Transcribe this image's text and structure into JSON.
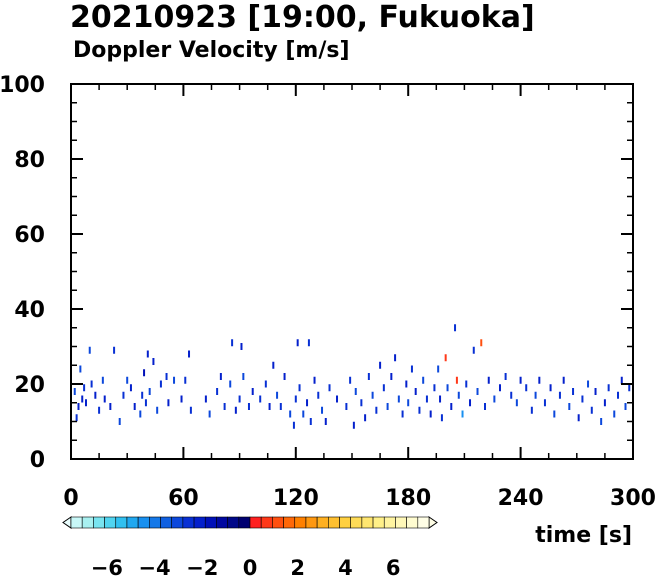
{
  "chart_data": {
    "type": "heatmap",
    "title": "20210923 [19:00, Fukuoka]",
    "subtitle": "Doppler Velocity [m/s]",
    "xlabel": "time [s]",
    "ylabel": "",
    "xlim": [
      0,
      300
    ],
    "ylim": [
      0,
      100
    ],
    "x_ticks": [
      "0",
      "60",
      "120",
      "180",
      "240",
      "300"
    ],
    "y_ticks": [
      "0",
      "20",
      "40",
      "60",
      "80",
      "100"
    ],
    "colorbar": {
      "vmin": -7.5,
      "vmax": 7.5,
      "ticks": [
        "−6",
        "−4",
        "−2",
        "0",
        "2",
        "4",
        "6"
      ],
      "negative_colors": [
        "#c8f8f8",
        "#a8f0f0",
        "#78e4f0",
        "#50d4f0",
        "#30c0f0",
        "#20a8f0",
        "#1890f0",
        "#1478e8",
        "#1060e0",
        "#0c48dc",
        "#0830d4",
        "#0420cc",
        "#0010b8",
        "#0008a0",
        "#000888",
        "#000070"
      ],
      "positive_colors": [
        "#ff2020",
        "#ff3818",
        "#ff5010",
        "#ff6808",
        "#ff8000",
        "#ff9810",
        "#ffb020",
        "#ffc030",
        "#ffd040",
        "#ffdc58",
        "#ffe670",
        "#fff088",
        "#fff4a0",
        "#fff8b8",
        "#fffcd0",
        "#fffee6"
      ]
    },
    "points": [
      {
        "x": 2,
        "y": 18,
        "v": -3
      },
      {
        "x": 3,
        "y": 11,
        "v": -2.5
      },
      {
        "x": 4,
        "y": 14,
        "v": -2
      },
      {
        "x": 5,
        "y": 24,
        "v": -3
      },
      {
        "x": 6,
        "y": 16,
        "v": -2
      },
      {
        "x": 7,
        "y": 19,
        "v": -2.8
      },
      {
        "x": 8,
        "y": 15,
        "v": -2
      },
      {
        "x": 10,
        "y": 29,
        "v": -3
      },
      {
        "x": 11,
        "y": 20,
        "v": -2.6
      },
      {
        "x": 13,
        "y": 17,
        "v": -2
      },
      {
        "x": 15,
        "y": 13,
        "v": -2.4
      },
      {
        "x": 17,
        "y": 21,
        "v": -3
      },
      {
        "x": 18,
        "y": 16,
        "v": -2
      },
      {
        "x": 21,
        "y": 14,
        "v": -2.2
      },
      {
        "x": 23,
        "y": 29,
        "v": -2.6
      },
      {
        "x": 26,
        "y": 10,
        "v": -3
      },
      {
        "x": 28,
        "y": 17,
        "v": -2.5
      },
      {
        "x": 30,
        "y": 21,
        "v": -3
      },
      {
        "x": 32,
        "y": 19,
        "v": -2
      },
      {
        "x": 34,
        "y": 14,
        "v": -2.3
      },
      {
        "x": 37,
        "y": 12,
        "v": -3
      },
      {
        "x": 38,
        "y": 17,
        "v": -2.7
      },
      {
        "x": 39,
        "y": 23,
        "v": -1.8
      },
      {
        "x": 40,
        "y": 15,
        "v": -2.4
      },
      {
        "x": 41,
        "y": 28,
        "v": -2.2
      },
      {
        "x": 42,
        "y": 18,
        "v": -3
      },
      {
        "x": 44,
        "y": 26,
        "v": -2
      },
      {
        "x": 46,
        "y": 13,
        "v": -3
      },
      {
        "x": 48,
        "y": 20,
        "v": -2.5
      },
      {
        "x": 51,
        "y": 22,
        "v": -2.6
      },
      {
        "x": 52,
        "y": 15,
        "v": -2
      },
      {
        "x": 55,
        "y": 21,
        "v": -3
      },
      {
        "x": 59,
        "y": 16,
        "v": -2.3
      },
      {
        "x": 61,
        "y": 21,
        "v": -2.8
      },
      {
        "x": 63,
        "y": 28,
        "v": -2
      },
      {
        "x": 64,
        "y": 13,
        "v": -2.5
      },
      {
        "x": 72,
        "y": 16,
        "v": -2.2
      },
      {
        "x": 74,
        "y": 12,
        "v": -3
      },
      {
        "x": 78,
        "y": 18,
        "v": -2.4
      },
      {
        "x": 80,
        "y": 22,
        "v": -2
      },
      {
        "x": 82,
        "y": 14,
        "v": -2.6
      },
      {
        "x": 85,
        "y": 20,
        "v": -3
      },
      {
        "x": 86,
        "y": 31,
        "v": -2.5
      },
      {
        "x": 88,
        "y": 13,
        "v": -2
      },
      {
        "x": 90,
        "y": 16,
        "v": -2.5
      },
      {
        "x": 91,
        "y": 30,
        "v": -2.2
      },
      {
        "x": 92,
        "y": 22,
        "v": -3
      },
      {
        "x": 95,
        "y": 14,
        "v": -2.8
      },
      {
        "x": 97,
        "y": 18,
        "v": -2
      },
      {
        "x": 101,
        "y": 16,
        "v": -2.4
      },
      {
        "x": 104,
        "y": 20,
        "v": -2.6
      },
      {
        "x": 106,
        "y": 14,
        "v": -2
      },
      {
        "x": 108,
        "y": 25,
        "v": -2.2
      },
      {
        "x": 110,
        "y": 17,
        "v": -3
      },
      {
        "x": 112,
        "y": 14,
        "v": -2.5
      },
      {
        "x": 114,
        "y": 22,
        "v": -2.2
      },
      {
        "x": 117,
        "y": 12,
        "v": -3
      },
      {
        "x": 119,
        "y": 9,
        "v": -2.4
      },
      {
        "x": 120,
        "y": 16,
        "v": -2.6
      },
      {
        "x": 121,
        "y": 31,
        "v": -2
      },
      {
        "x": 122,
        "y": 19,
        "v": -2.5
      },
      {
        "x": 124,
        "y": 12,
        "v": -3
      },
      {
        "x": 126,
        "y": 15,
        "v": -2
      },
      {
        "x": 127,
        "y": 31,
        "v": -2.8
      },
      {
        "x": 128,
        "y": 10,
        "v": -2.4
      },
      {
        "x": 130,
        "y": 21,
        "v": -2
      },
      {
        "x": 132,
        "y": 17,
        "v": -2.7
      },
      {
        "x": 134,
        "y": 13,
        "v": -3
      },
      {
        "x": 136,
        "y": 10,
        "v": -2.2
      },
      {
        "x": 138,
        "y": 19,
        "v": -2.5
      },
      {
        "x": 142,
        "y": 16,
        "v": -2
      },
      {
        "x": 147,
        "y": 14,
        "v": -2.8
      },
      {
        "x": 149,
        "y": 21,
        "v": -2.4
      },
      {
        "x": 151,
        "y": 9,
        "v": -2
      },
      {
        "x": 152,
        "y": 18,
        "v": -3
      },
      {
        "x": 155,
        "y": 15,
        "v": -2.6
      },
      {
        "x": 157,
        "y": 11,
        "v": -2
      },
      {
        "x": 159,
        "y": 22,
        "v": -2.5
      },
      {
        "x": 161,
        "y": 17,
        "v": -3
      },
      {
        "x": 163,
        "y": 13,
        "v": -2.4
      },
      {
        "x": 165,
        "y": 25,
        "v": -2
      },
      {
        "x": 167,
        "y": 19,
        "v": -2.7
      },
      {
        "x": 169,
        "y": 14,
        "v": -3
      },
      {
        "x": 171,
        "y": 22,
        "v": -2.2
      },
      {
        "x": 173,
        "y": 27,
        "v": -2
      },
      {
        "x": 175,
        "y": 16,
        "v": -3
      },
      {
        "x": 177,
        "y": 12,
        "v": -2.5
      },
      {
        "x": 179,
        "y": 20,
        "v": -2.2
      },
      {
        "x": 180,
        "y": 15,
        "v": -3
      },
      {
        "x": 182,
        "y": 24,
        "v": -2.6
      },
      {
        "x": 184,
        "y": 18,
        "v": -2
      },
      {
        "x": 186,
        "y": 13,
        "v": -2.5
      },
      {
        "x": 188,
        "y": 21,
        "v": -3
      },
      {
        "x": 190,
        "y": 16,
        "v": -2.4
      },
      {
        "x": 192,
        "y": 12,
        "v": -2
      },
      {
        "x": 194,
        "y": 19,
        "v": -2.8
      },
      {
        "x": 196,
        "y": 24,
        "v": -3
      },
      {
        "x": 197,
        "y": 16,
        "v": -2.2
      },
      {
        "x": 198,
        "y": 11,
        "v": -2.5
      },
      {
        "x": 200,
        "y": 27,
        "v": 0.5
      },
      {
        "x": 201,
        "y": 19,
        "v": -3
      },
      {
        "x": 203,
        "y": 14,
        "v": -2
      },
      {
        "x": 205,
        "y": 35,
        "v": -2.6
      },
      {
        "x": 206,
        "y": 21,
        "v": 0.8
      },
      {
        "x": 207,
        "y": 17,
        "v": -3
      },
      {
        "x": 209,
        "y": 12,
        "v": -4.5
      },
      {
        "x": 211,
        "y": 20,
        "v": -2.4
      },
      {
        "x": 213,
        "y": 15,
        "v": -2
      },
      {
        "x": 215,
        "y": 29,
        "v": -2.8
      },
      {
        "x": 217,
        "y": 18,
        "v": -3
      },
      {
        "x": 219,
        "y": 31,
        "v": 1
      },
      {
        "x": 221,
        "y": 14,
        "v": -2.5
      },
      {
        "x": 223,
        "y": 21,
        "v": -2.2
      },
      {
        "x": 226,
        "y": 16,
        "v": -3
      },
      {
        "x": 229,
        "y": 19,
        "v": -2
      },
      {
        "x": 232,
        "y": 22,
        "v": -2.6
      },
      {
        "x": 235,
        "y": 17,
        "v": -2.4
      },
      {
        "x": 238,
        "y": 15,
        "v": -3
      },
      {
        "x": 240,
        "y": 21,
        "v": -2
      },
      {
        "x": 243,
        "y": 19,
        "v": -2.5
      },
      {
        "x": 246,
        "y": 13,
        "v": -2.8
      },
      {
        "x": 248,
        "y": 17,
        "v": -3
      },
      {
        "x": 250,
        "y": 21,
        "v": -2.2
      },
      {
        "x": 253,
        "y": 15,
        "v": -2.4
      },
      {
        "x": 256,
        "y": 19,
        "v": -2
      },
      {
        "x": 258,
        "y": 12,
        "v": -3
      },
      {
        "x": 261,
        "y": 17,
        "v": -2.6
      },
      {
        "x": 263,
        "y": 21,
        "v": -2.2
      },
      {
        "x": 266,
        "y": 14,
        "v": -3
      },
      {
        "x": 268,
        "y": 18,
        "v": -2.5
      },
      {
        "x": 271,
        "y": 11,
        "v": -2
      },
      {
        "x": 273,
        "y": 16,
        "v": -2.8
      },
      {
        "x": 276,
        "y": 20,
        "v": -3
      },
      {
        "x": 278,
        "y": 13,
        "v": -2.4
      },
      {
        "x": 280,
        "y": 18,
        "v": -2.2
      },
      {
        "x": 283,
        "y": 10,
        "v": -3
      },
      {
        "x": 285,
        "y": 15,
        "v": -2
      },
      {
        "x": 287,
        "y": 19,
        "v": -2.6
      },
      {
        "x": 290,
        "y": 12,
        "v": -3
      },
      {
        "x": 292,
        "y": 17,
        "v": -2.4
      },
      {
        "x": 294,
        "y": 21,
        "v": -2.2
      },
      {
        "x": 296,
        "y": 14,
        "v": -3
      },
      {
        "x": 298,
        "y": 19,
        "v": -2.5
      }
    ]
  }
}
